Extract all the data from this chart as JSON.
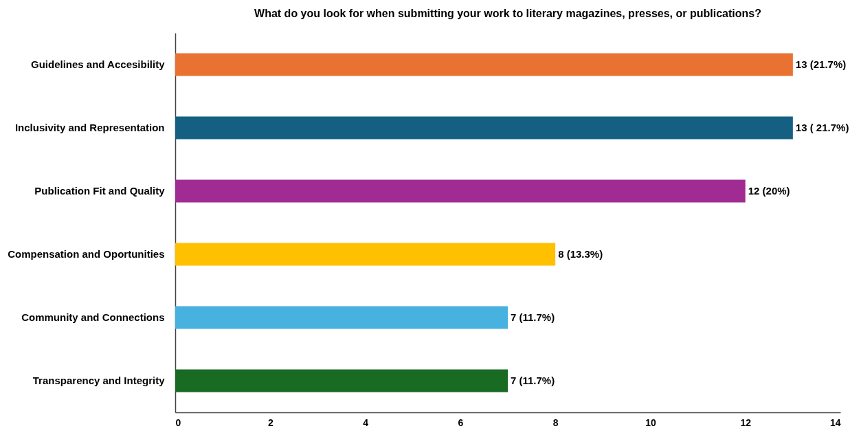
{
  "chart_data": {
    "type": "bar",
    "orientation": "horizontal",
    "title": "What do you look for when submitting your work to literary magazines, presses, or publications?",
    "categories": [
      "Guidelines and Accesibility",
      "Inclusivity and Representation",
      "Publication Fit and Quality",
      "Compensation and Oportunities",
      "Community and Connections",
      "Transparency and Integrity"
    ],
    "values": [
      13,
      13,
      12,
      8,
      7,
      7
    ],
    "colors": [
      "#e97132",
      "#156082",
      "#a02b93",
      "#ffc000",
      "#47b1e0",
      "#196b24"
    ],
    "value_labels": [
      "13 (21.7%)",
      "13 ( 21.7%)",
      "12 (20%)",
      "8 (13.3%)",
      "7 (11.7%)",
      "7 (11.7%)"
    ],
    "xlim": [
      0,
      14
    ],
    "xticks": [
      0,
      2,
      4,
      6,
      8,
      10,
      12,
      14
    ],
    "grid": false
  }
}
